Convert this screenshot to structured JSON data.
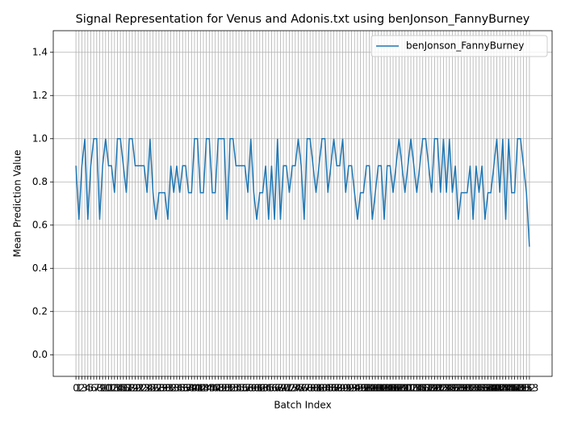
{
  "chart_data": {
    "type": "line",
    "title": "Signal Representation for Venus and Adonis.txt using benJonson_FannyBurney",
    "x_label": "Batch Index",
    "y_label": "Mean Prediction Value",
    "x": [
      0,
      1,
      2,
      3,
      4,
      5,
      6,
      7,
      8,
      9,
      10,
      11,
      12,
      13,
      14,
      15,
      16,
      17,
      18,
      19,
      20,
      21,
      22,
      23,
      24,
      25,
      26,
      27,
      28,
      29,
      30,
      31,
      32,
      33,
      34,
      35,
      36,
      37,
      38,
      39,
      40,
      41,
      42,
      43,
      44,
      45,
      46,
      47,
      48,
      49,
      50,
      51,
      52,
      53,
      54,
      55,
      56,
      57,
      58,
      59,
      60,
      61,
      62,
      63,
      64,
      65,
      66,
      67,
      68,
      69,
      70,
      71,
      72,
      73,
      74,
      75,
      76,
      77,
      78,
      79,
      80,
      81,
      82,
      83,
      84,
      85,
      86,
      87,
      88,
      89,
      90,
      91,
      92,
      93,
      94,
      95,
      96,
      97,
      98,
      99,
      100,
      101,
      102,
      103,
      104,
      105,
      106,
      107,
      108,
      109,
      110,
      111,
      112,
      113,
      114,
      115,
      116,
      117,
      118,
      119,
      120,
      121,
      122,
      123,
      124,
      125,
      126,
      127,
      128,
      129,
      130,
      131,
      132,
      133,
      134,
      135,
      136,
      137,
      138,
      139,
      140,
      141,
      142,
      143,
      144,
      145,
      146,
      147,
      148,
      149,
      150,
      151,
      152,
      153
    ],
    "series": [
      {
        "name": "benJonson_FannyBurney",
        "color": "#1f77b4",
        "values": [
          0.875,
          0.625,
          0.875,
          1.0,
          0.625,
          0.875,
          1.0,
          1.0,
          0.625,
          0.875,
          1.0,
          0.875,
          0.875,
          0.75,
          1.0,
          1.0,
          0.875,
          0.75,
          1.0,
          1.0,
          0.875,
          0.875,
          0.875,
          0.875,
          0.75,
          1.0,
          0.75,
          0.625,
          0.75,
          0.75,
          0.75,
          0.625,
          0.875,
          0.75,
          0.875,
          0.75,
          0.875,
          0.875,
          0.75,
          0.75,
          1.0,
          1.0,
          0.75,
          0.75,
          1.0,
          1.0,
          0.75,
          0.75,
          1.0,
          1.0,
          1.0,
          0.625,
          1.0,
          1.0,
          0.875,
          0.875,
          0.875,
          0.875,
          0.75,
          1.0,
          0.75,
          0.625,
          0.75,
          0.75,
          0.875,
          0.625,
          0.875,
          0.625,
          1.0,
          0.625,
          0.875,
          0.875,
          0.75,
          0.875,
          0.875,
          1.0,
          0.875,
          0.625,
          1.0,
          1.0,
          0.875,
          0.75,
          0.875,
          1.0,
          1.0,
          0.75,
          0.875,
          1.0,
          0.875,
          0.875,
          1.0,
          0.75,
          0.875,
          0.875,
          0.75,
          0.625,
          0.75,
          0.75,
          0.875,
          0.875,
          0.625,
          0.75,
          0.875,
          0.875,
          0.625,
          0.875,
          0.875,
          0.75,
          0.875,
          1.0,
          0.875,
          0.75,
          0.875,
          1.0,
          0.875,
          0.75,
          0.875,
          1.0,
          1.0,
          0.875,
          0.75,
          1.0,
          1.0,
          0.75,
          1.0,
          0.75,
          1.0,
          0.75,
          0.875,
          0.625,
          0.75,
          0.75,
          0.75,
          0.875,
          0.625,
          0.875,
          0.75,
          0.875,
          0.625,
          0.75,
          0.75,
          0.875,
          1.0,
          0.75,
          1.0,
          0.625,
          1.0,
          0.75,
          0.75,
          1.0,
          1.0,
          0.875,
          0.75,
          0.5
        ]
      }
    ],
    "xlim": [
      -7.65,
      160.65
    ],
    "xticks": [
      0,
      1,
      2,
      3,
      4,
      5,
      6,
      7,
      8,
      9,
      10,
      11,
      12,
      13,
      14,
      15,
      16,
      17,
      18,
      19,
      20,
      21,
      22,
      23,
      24,
      25,
      26,
      27,
      28,
      29,
      30,
      31,
      32,
      33,
      34,
      35,
      36,
      37,
      38,
      39,
      40,
      41,
      42,
      43,
      44,
      45,
      46,
      47,
      48,
      49,
      50,
      51,
      52,
      53,
      54,
      55,
      56,
      57,
      58,
      59,
      60,
      61,
      62,
      63,
      64,
      65,
      66,
      67,
      68,
      69,
      70,
      71,
      72,
      73,
      74,
      75,
      76,
      77,
      78,
      79,
      80,
      81,
      82,
      83,
      84,
      85,
      86,
      87,
      88,
      89,
      90,
      91,
      92,
      93,
      94,
      95,
      96,
      97,
      98,
      99,
      100,
      101,
      102,
      103,
      104,
      105,
      106,
      107,
      108,
      109,
      110,
      111,
      112,
      113,
      114,
      115,
      116,
      117,
      118,
      119,
      120,
      121,
      122,
      123,
      124,
      125,
      126,
      127,
      128,
      129,
      130,
      131,
      132,
      133,
      134,
      135,
      136,
      137,
      138,
      139,
      140,
      141,
      142,
      143,
      144,
      145,
      146,
      147,
      148,
      149,
      150,
      151,
      152,
      153
    ],
    "ylim": [
      -0.1,
      1.5
    ],
    "yticks": [
      {
        "value": 0,
        "label": "0.0"
      },
      0.2,
      0.4,
      0.6,
      0.8,
      {
        "value": 1,
        "label": "1.0"
      },
      1.2,
      1.4
    ],
    "grid": true,
    "legend": "upper right"
  }
}
